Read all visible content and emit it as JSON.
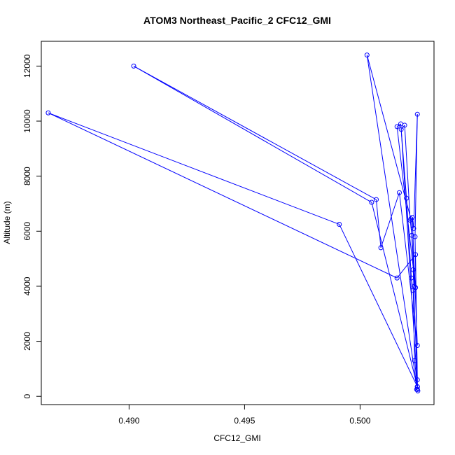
{
  "chart_data": {
    "type": "line",
    "title": "ATOM3 Northeast_Pacific_2 CFC12_GMI",
    "xlabel": "CFC12_GMI",
    "ylabel": "Altitude (m)",
    "xlim": [
      0.4862,
      0.5032
    ],
    "ylim": [
      -300,
      12900
    ],
    "xticks": [
      0.49,
      0.495,
      0.5
    ],
    "xtick_labels": [
      "0.490",
      "0.495",
      "0.500"
    ],
    "yticks": [
      0,
      2000,
      4000,
      6000,
      8000,
      10000,
      12000
    ],
    "ytick_labels": [
      "0",
      "2000",
      "4000",
      "6000",
      "8000",
      "10000",
      "12000"
    ],
    "grid": false,
    "series": [
      {
        "color": "#0000ff",
        "marker": "open-circle",
        "line": true,
        "x": [
          0.5025,
          0.50245,
          0.50248,
          0.50236,
          0.5023,
          0.50222,
          0.50201,
          0.50176,
          0.5016,
          0.5024,
          0.50224,
          0.50217,
          0.50193,
          0.50178,
          0.50248,
          0.50248,
          0.50238,
          0.50248,
          0.50232,
          0.50226,
          0.50248,
          0.5017,
          0.5009,
          0.5007,
          0.4902,
          0.5005,
          0.50248,
          0.5024,
          0.5016,
          0.4865,
          0.4991,
          0.50248,
          0.5023,
          0.50235,
          0.5022,
          0.5003,
          0.50248
        ],
        "y": [
          200,
          250,
          350,
          1300,
          3850,
          4300,
          7200,
          9900,
          9800,
          3950,
          5850,
          6400,
          9850,
          9700,
          350,
          600,
          5800,
          10250,
          6100,
          6500,
          1850,
          7400,
          5400,
          7150,
          12000,
          7050,
          350,
          5150,
          4300,
          10300,
          6250,
          350,
          4600,
          4000,
          6450,
          12400,
          250
        ]
      }
    ]
  }
}
